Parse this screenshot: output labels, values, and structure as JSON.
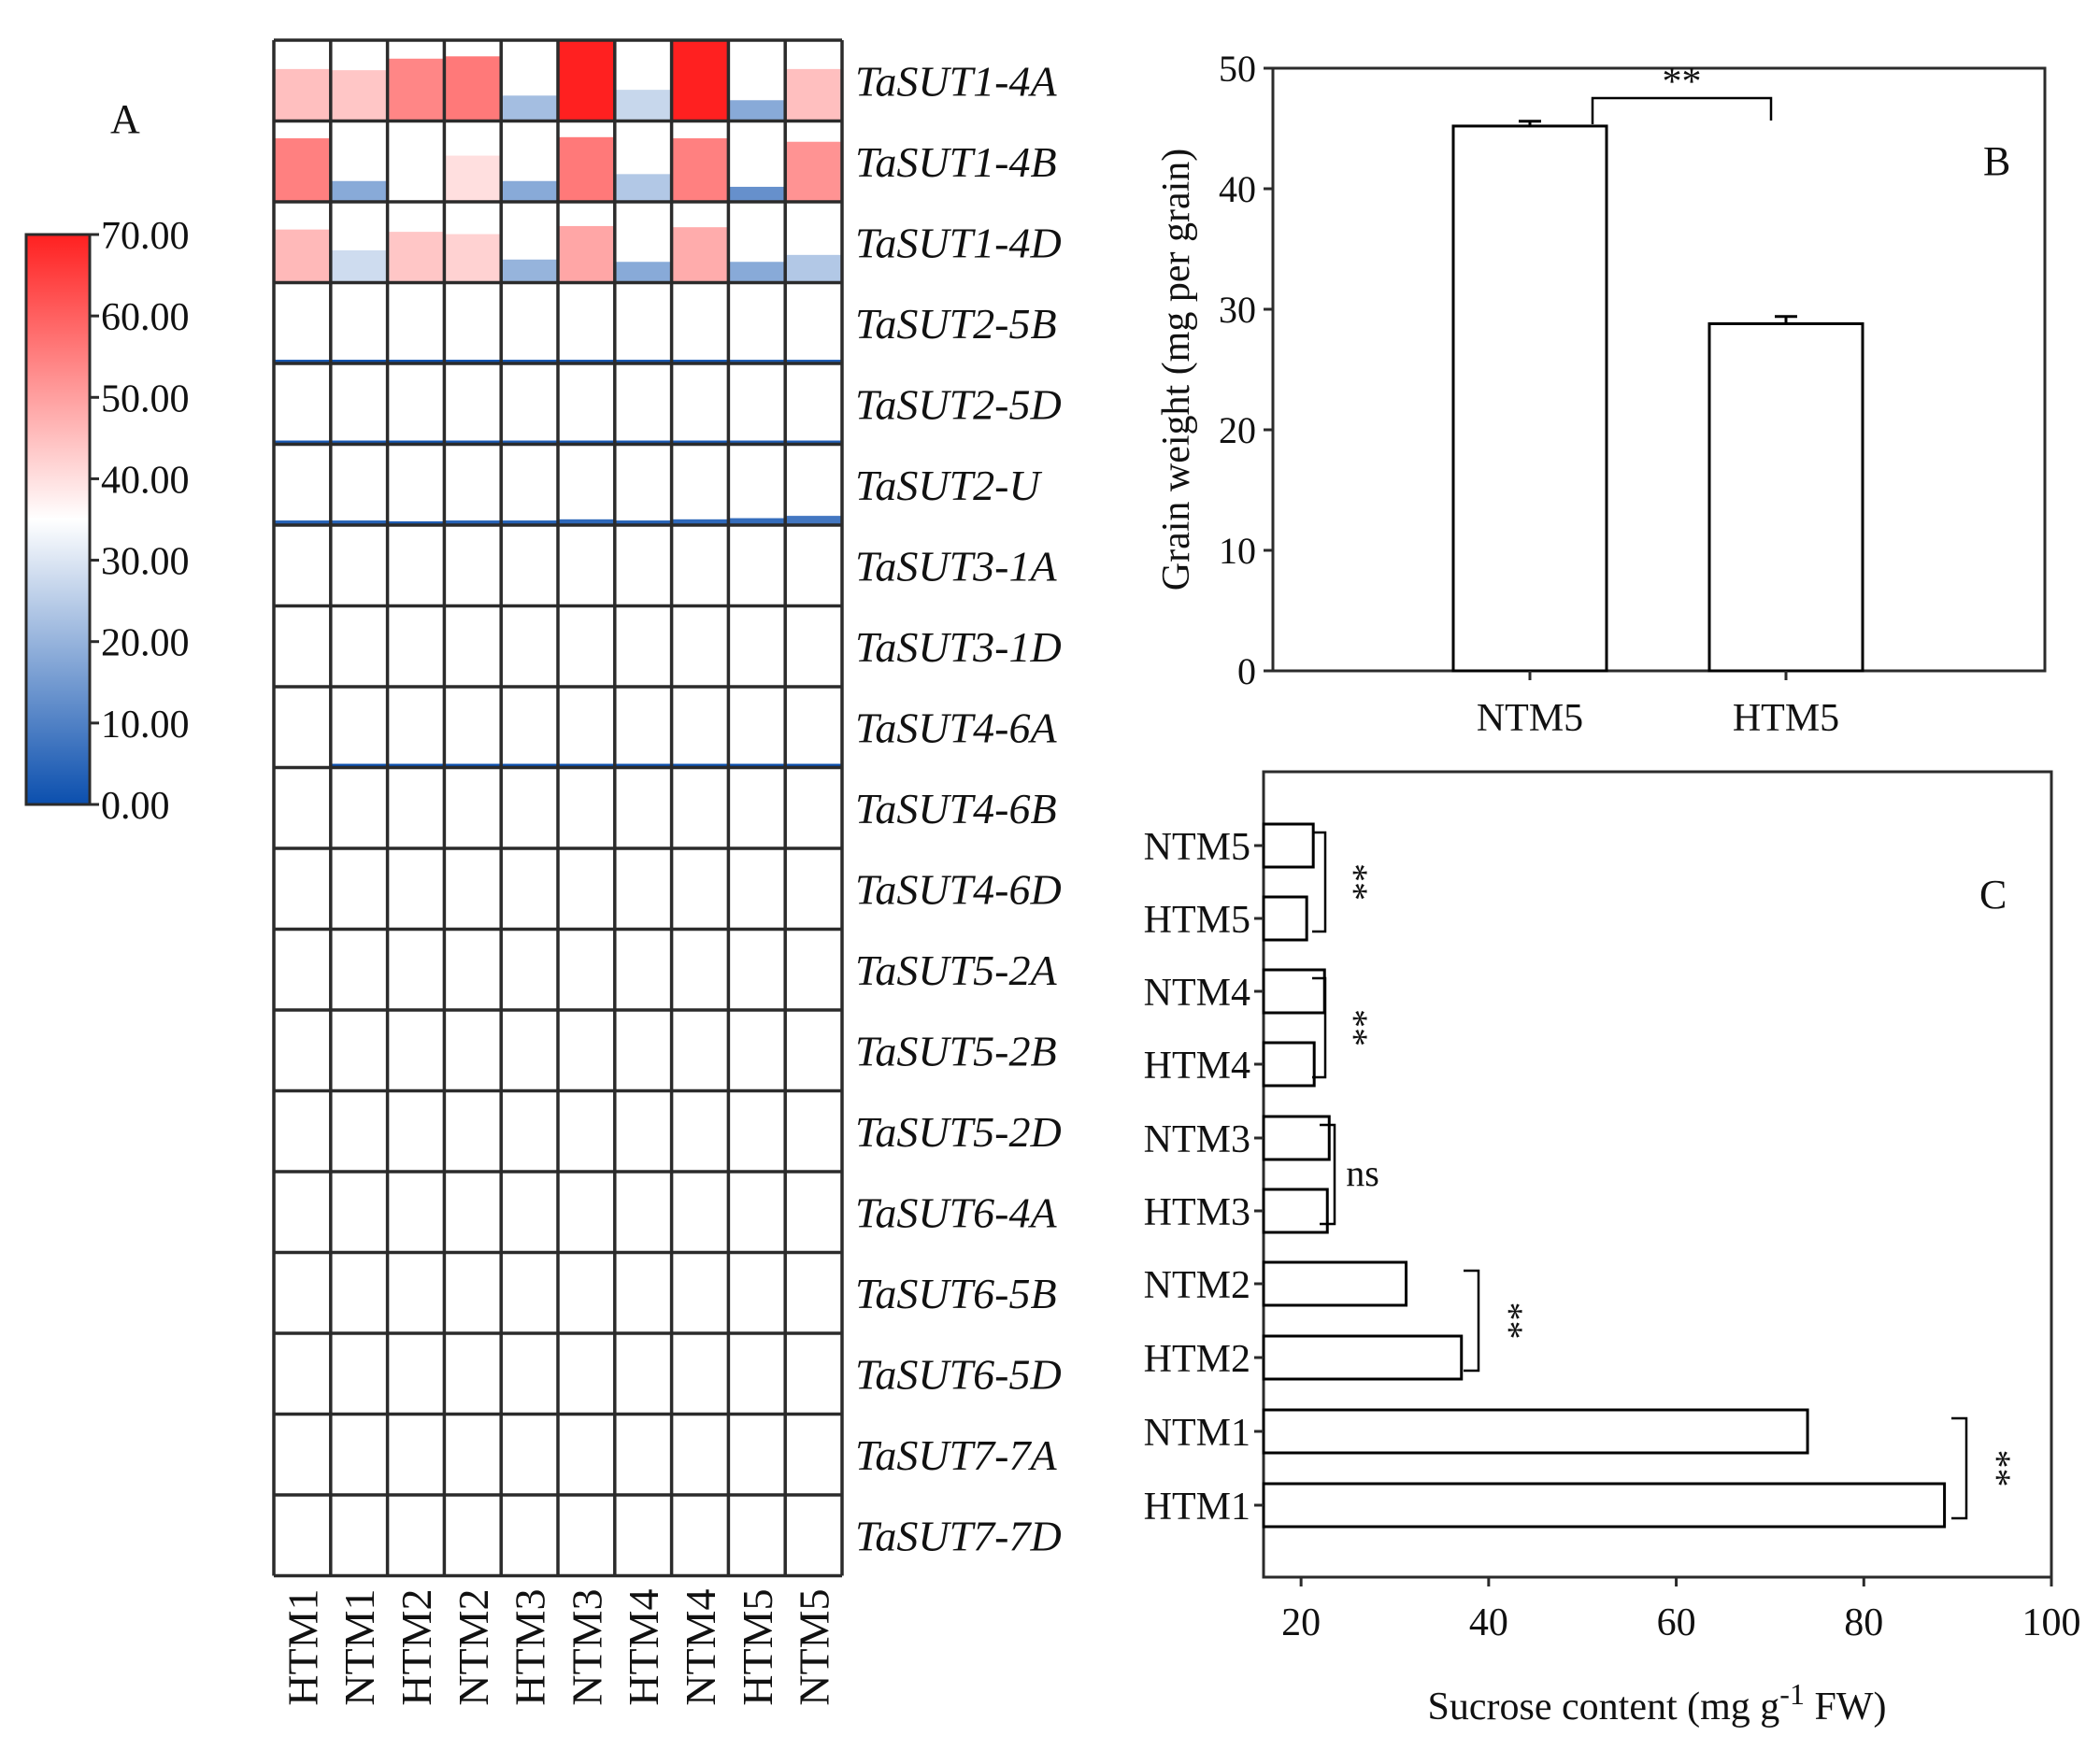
{
  "panels": {
    "A": "A",
    "B": "B",
    "C": "C"
  },
  "colors": {
    "low": "#0b4fae",
    "mid": "#ffffff",
    "high": "#ff2020",
    "frame": "#2b2b2b",
    "text": "#111111"
  },
  "chart_data": [
    {
      "id": "A",
      "type": "heatmap",
      "title": "",
      "samples": [
        "HTM1",
        "NTM1",
        "HTM2",
        "NTM2",
        "HTM3",
        "NTM3",
        "HTM4",
        "NTM4",
        "HTM5",
        "NTM5"
      ],
      "genes": [
        "TaSUT1-4A",
        "TaSUT1-4B",
        "TaSUT1-4D",
        "TaSUT2-5B",
        "TaSUT2-5D",
        "TaSUT2-U",
        "TaSUT3-1A",
        "TaSUT3-1D",
        "TaSUT4-6A",
        "TaSUT4-6B",
        "TaSUT4-6D",
        "TaSUT5-2A",
        "TaSUT5-2B",
        "TaSUT5-2D",
        "TaSUT6-4A",
        "TaSUT6-5B",
        "TaSUT6-5D",
        "TaSUT7-7A",
        "TaSUT7-7D"
      ],
      "values": [
        [
          45,
          44,
          54,
          56,
          22,
          70,
          27,
          70,
          18,
          45
        ],
        [
          55,
          18,
          35,
          40,
          18,
          56,
          24,
          55,
          13,
          52
        ],
        [
          46,
          28,
          44,
          42,
          20,
          49,
          18,
          48,
          18,
          24
        ],
        [
          2,
          1,
          1,
          1,
          2,
          2,
          2,
          2,
          3,
          3
        ],
        [
          2,
          2,
          1,
          2,
          3,
          2,
          2,
          2,
          3,
          3
        ],
        [
          4,
          4,
          3,
          4,
          4,
          5,
          4,
          5,
          6,
          8
        ],
        [
          0,
          0,
          0,
          0,
          0,
          0,
          0,
          0,
          0,
          0
        ],
        [
          0,
          0,
          0,
          0,
          0,
          0,
          0,
          0,
          0,
          0
        ],
        [
          0,
          0.3,
          0.3,
          0.3,
          0.3,
          0.3,
          0.3,
          0.5,
          0.2,
          0.2
        ],
        [
          0,
          0,
          0,
          0,
          0,
          0,
          0,
          0,
          0,
          0
        ],
        [
          0,
          0,
          0,
          0,
          0,
          0,
          0,
          0,
          0,
          0
        ],
        [
          0,
          0,
          0,
          0,
          0,
          0,
          0,
          0,
          0,
          0
        ],
        [
          0,
          0,
          0,
          0,
          0,
          0,
          0,
          0,
          0,
          0
        ],
        [
          0,
          0,
          0,
          0,
          0,
          0,
          0,
          0,
          0,
          0
        ],
        [
          0,
          0,
          0,
          0,
          0,
          0,
          0,
          0,
          0,
          0
        ],
        [
          0,
          0,
          0,
          0,
          0,
          0,
          0,
          0,
          0,
          0
        ],
        [
          0,
          0,
          0,
          0,
          0,
          0,
          0,
          0,
          0,
          0
        ],
        [
          0,
          0,
          0,
          0,
          0,
          0,
          0,
          0,
          0,
          0
        ],
        [
          0,
          0,
          0,
          0,
          0,
          0,
          0,
          0,
          0,
          0
        ]
      ],
      "value_range": [
        0,
        70
      ],
      "colorbar_ticks": [
        "70.00",
        "60.00",
        "50.00",
        "40.00",
        "30.00",
        "20.00",
        "10.00",
        "0.00"
      ],
      "colorbar_tick_values": [
        70,
        60,
        50,
        40,
        30,
        20,
        10,
        0
      ]
    },
    {
      "id": "B",
      "type": "bar",
      "title": "",
      "categories": [
        "NTM5",
        "HTM5"
      ],
      "values": [
        45.2,
        28.8
      ],
      "errors": [
        0.4,
        0.6
      ],
      "xlabel": "",
      "ylabel": "Grain weight (mg per grain)",
      "ylim": [
        0,
        50
      ],
      "yticks": [
        0,
        10,
        20,
        30,
        40,
        50
      ],
      "significance": [
        {
          "pair": [
            "NTM5",
            "HTM5"
          ],
          "label": "**"
        }
      ]
    },
    {
      "id": "C",
      "type": "bar",
      "orientation": "horizontal",
      "title": "",
      "categories": [
        "NTM5",
        "HTM5",
        "NTM4",
        "HTM4",
        "NTM3",
        "HTM3",
        "NTM2",
        "HTM2",
        "NTM1",
        "HTM1"
      ],
      "values": [
        21.3,
        20.6,
        22.5,
        21.4,
        23.0,
        22.8,
        31.2,
        37.1,
        74.0,
        88.6
      ],
      "xlabel_main": "Sucrose content (mg g",
      "xlabel_sup": "-1",
      "xlabel_tail": " FW)",
      "xlim": [
        16,
        100
      ],
      "xticks": [
        20,
        40,
        60,
        80,
        100
      ],
      "significance": [
        {
          "pair": [
            "NTM5",
            "HTM5"
          ],
          "label": "**"
        },
        {
          "pair": [
            "NTM4",
            "HTM4"
          ],
          "label": "**"
        },
        {
          "pair": [
            "NTM3",
            "HTM3"
          ],
          "label": "ns"
        },
        {
          "pair": [
            "NTM2",
            "HTM2"
          ],
          "label": "**"
        },
        {
          "pair": [
            "NTM1",
            "HTM1"
          ],
          "label": "**"
        }
      ]
    }
  ]
}
